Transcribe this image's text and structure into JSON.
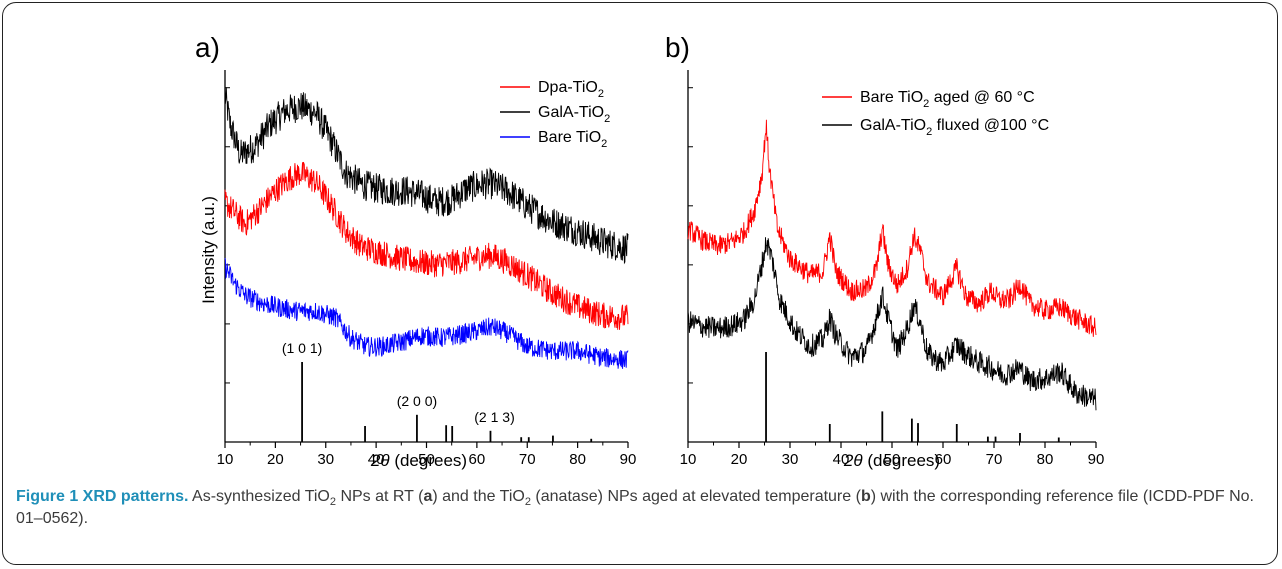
{
  "caption": {
    "label": "Figure 1 XRD patterns.",
    "t1": " As-synthesized TiO",
    "t1sub": "2",
    "t2": " NPs at RT (",
    "a": "a",
    "t3": ") and the TiO",
    "t3sub": "2",
    "t4": " (anatase) NPs aged at elevated temperature (",
    "b": "b",
    "t5": ") with the corresponding reference file (ICDD-PDF No. 01–0562)."
  },
  "colors": {
    "red": "#ff0000",
    "black": "#000000",
    "blue": "#0000ff"
  },
  "chart_data": [
    {
      "type": "line",
      "panel_label": "a)",
      "xlabel_theta": "2θ",
      "xlabel_rest": " (degrees)",
      "ylabel": "Intensity (a.u.)",
      "xlim": [
        10,
        90
      ],
      "x_ticks": [
        "10",
        "20",
        "30",
        "40",
        "50",
        "60",
        "70",
        "80",
        "90"
      ],
      "legend_position": "top-right",
      "legend": [
        {
          "main": "Dpa-TiO",
          "sub": "2",
          "color": "#ff0000",
          "tail": ""
        },
        {
          "main": "GalA-TiO",
          "sub": "2",
          "color": "#000000",
          "tail": ""
        },
        {
          "main": "Bare TiO",
          "sub": "2",
          "color": "#0000ff",
          "tail": ""
        }
      ],
      "series": [
        {
          "color": "#000000",
          "noise": 0.07,
          "points": [
            [
              10,
              0.95
            ],
            [
              11,
              0.82
            ],
            [
              13,
              0.68
            ],
            [
              16,
              0.72
            ],
            [
              19,
              0.82
            ],
            [
              22,
              0.88
            ],
            [
              25,
              0.9
            ],
            [
              28,
              0.87
            ],
            [
              31,
              0.75
            ],
            [
              34,
              0.6
            ],
            [
              37,
              0.55
            ],
            [
              40,
              0.53
            ],
            [
              43,
              0.52
            ],
            [
              46,
              0.52
            ],
            [
              49,
              0.5
            ],
            [
              52,
              0.47
            ],
            [
              55,
              0.48
            ],
            [
              58,
              0.53
            ],
            [
              61,
              0.55
            ],
            [
              63,
              0.55
            ],
            [
              66,
              0.52
            ],
            [
              70,
              0.45
            ],
            [
              75,
              0.38
            ],
            [
              80,
              0.34
            ],
            [
              85,
              0.29
            ],
            [
              90,
              0.26
            ]
          ]
        },
        {
          "color": "#ff0000",
          "noise": 0.06,
          "points": [
            [
              10,
              0.47
            ],
            [
              12,
              0.42
            ],
            [
              14,
              0.37
            ],
            [
              17,
              0.44
            ],
            [
              20,
              0.52
            ],
            [
              23,
              0.58
            ],
            [
              25,
              0.6
            ],
            [
              28,
              0.56
            ],
            [
              31,
              0.46
            ],
            [
              34,
              0.34
            ],
            [
              37,
              0.27
            ],
            [
              40,
              0.25
            ],
            [
              44,
              0.22
            ],
            [
              48,
              0.2
            ],
            [
              52,
              0.19
            ],
            [
              56,
              0.2
            ],
            [
              60,
              0.22
            ],
            [
              63,
              0.23
            ],
            [
              66,
              0.2
            ],
            [
              70,
              0.14
            ],
            [
              75,
              0.06
            ],
            [
              80,
              0.0
            ],
            [
              85,
              -0.04
            ],
            [
              90,
              -0.05
            ]
          ]
        },
        {
          "color": "#0000ff",
          "noise": 0.045,
          "points": [
            [
              10,
              0.18
            ],
            [
              12,
              0.1
            ],
            [
              14,
              0.05
            ],
            [
              17,
              0.02
            ],
            [
              20,
              0.0
            ],
            [
              24,
              -0.02
            ],
            [
              28,
              -0.02
            ],
            [
              32,
              -0.05
            ],
            [
              35,
              -0.14
            ],
            [
              38,
              -0.18
            ],
            [
              41,
              -0.18
            ],
            [
              45,
              -0.16
            ],
            [
              49,
              -0.13
            ],
            [
              53,
              -0.14
            ],
            [
              56,
              -0.13
            ],
            [
              60,
              -0.11
            ],
            [
              63,
              -0.09
            ],
            [
              66,
              -0.12
            ],
            [
              70,
              -0.18
            ],
            [
              75,
              -0.2
            ],
            [
              80,
              -0.2
            ],
            [
              85,
              -0.23
            ],
            [
              90,
              -0.24
            ]
          ]
        }
      ],
      "reference_lines": [
        {
          "x": 25.3,
          "h": 1.0
        },
        {
          "x": 37.8,
          "h": 0.2
        },
        {
          "x": 48.1,
          "h": 0.34
        },
        {
          "x": 53.9,
          "h": 0.21
        },
        {
          "x": 55.1,
          "h": 0.2
        },
        {
          "x": 62.7,
          "h": 0.14
        },
        {
          "x": 68.8,
          "h": 0.06
        },
        {
          "x": 70.3,
          "h": 0.06
        },
        {
          "x": 75.1,
          "h": 0.08
        },
        {
          "x": 82.7,
          "h": 0.04
        }
      ],
      "annotations": [
        {
          "text": "(1 0 1)",
          "x": 25.3
        },
        {
          "text": "(2 0 0)",
          "x": 48.1
        },
        {
          "text": "(2 1 3)",
          "x": 63.5
        }
      ]
    },
    {
      "type": "line",
      "panel_label": "b)",
      "xlabel_theta": "2θ",
      "xlabel_rest": " (degrees)",
      "xlim": [
        10,
        90
      ],
      "x_ticks": [
        "10",
        "20",
        "30",
        "40",
        "50",
        "60",
        "70",
        "80",
        "90"
      ],
      "legend_position": "top-right",
      "legend": [
        {
          "main": "Bare TiO",
          "sub": "2",
          "color": "#ff0000",
          "tail": " aged @ 60 °C"
        },
        {
          "main": "GalA-TiO",
          "sub": "2",
          "color": "#000000",
          "tail": " fluxed @100 °C"
        }
      ],
      "series": [
        {
          "color": "#ff0000",
          "noise": 0.06,
          "points": [
            [
              10,
              0.62
            ],
            [
              13,
              0.55
            ],
            [
              16,
              0.52
            ],
            [
              19,
              0.55
            ],
            [
              21,
              0.6
            ],
            [
              23,
              0.72
            ],
            [
              24.5,
              0.92
            ],
            [
              25.3,
              1.2
            ],
            [
              26,
              0.95
            ],
            [
              27.5,
              0.62
            ],
            [
              30,
              0.45
            ],
            [
              34,
              0.36
            ],
            [
              36.5,
              0.38
            ],
            [
              37.8,
              0.58
            ],
            [
              39,
              0.38
            ],
            [
              42,
              0.27
            ],
            [
              45,
              0.28
            ],
            [
              47,
              0.4
            ],
            [
              48.1,
              0.62
            ],
            [
              49.2,
              0.42
            ],
            [
              51,
              0.3
            ],
            [
              53,
              0.4
            ],
            [
              54.3,
              0.58
            ],
            [
              55.5,
              0.5
            ],
            [
              57,
              0.32
            ],
            [
              60,
              0.24
            ],
            [
              62.7,
              0.4
            ],
            [
              64.5,
              0.24
            ],
            [
              67,
              0.2
            ],
            [
              69.5,
              0.27
            ],
            [
              71,
              0.22
            ],
            [
              73,
              0.22
            ],
            [
              75.2,
              0.31
            ],
            [
              77,
              0.2
            ],
            [
              80,
              0.16
            ],
            [
              83,
              0.18
            ],
            [
              86,
              0.12
            ],
            [
              90,
              0.06
            ]
          ]
        },
        {
          "color": "#000000",
          "noise": 0.065,
          "points": [
            [
              10,
              0.1
            ],
            [
              13,
              0.07
            ],
            [
              16,
              0.06
            ],
            [
              19,
              0.08
            ],
            [
              21,
              0.11
            ],
            [
              23,
              0.22
            ],
            [
              24.5,
              0.42
            ],
            [
              25.4,
              0.55
            ],
            [
              26.5,
              0.45
            ],
            [
              28,
              0.22
            ],
            [
              31,
              0.05
            ],
            [
              34,
              -0.04
            ],
            [
              36.5,
              0.0
            ],
            [
              37.8,
              0.12
            ],
            [
              39,
              0.02
            ],
            [
              42,
              -0.1
            ],
            [
              45,
              -0.06
            ],
            [
              47,
              0.12
            ],
            [
              48.1,
              0.25
            ],
            [
              49.2,
              0.12
            ],
            [
              51,
              -0.06
            ],
            [
              53,
              0.06
            ],
            [
              54.3,
              0.19
            ],
            [
              55.5,
              0.1
            ],
            [
              57,
              -0.08
            ],
            [
              60,
              -0.14
            ],
            [
              62.7,
              -0.03
            ],
            [
              64.5,
              -0.08
            ],
            [
              67,
              -0.13
            ],
            [
              69.5,
              -0.16
            ],
            [
              72,
              -0.2
            ],
            [
              75,
              -0.16
            ],
            [
              77,
              -0.23
            ],
            [
              80,
              -0.22
            ],
            [
              83,
              -0.18
            ],
            [
              86,
              -0.3
            ],
            [
              90,
              -0.34
            ]
          ]
        }
      ],
      "reference_lines": [
        {
          "x": 25.3,
          "h": 1.0
        },
        {
          "x": 37.8,
          "h": 0.2
        },
        {
          "x": 48.1,
          "h": 0.34
        },
        {
          "x": 53.9,
          "h": 0.26
        },
        {
          "x": 55.1,
          "h": 0.21
        },
        {
          "x": 62.7,
          "h": 0.2
        },
        {
          "x": 68.8,
          "h": 0.06
        },
        {
          "x": 70.3,
          "h": 0.06
        },
        {
          "x": 75.1,
          "h": 0.1
        },
        {
          "x": 82.7,
          "h": 0.05
        }
      ],
      "annotations": []
    }
  ]
}
